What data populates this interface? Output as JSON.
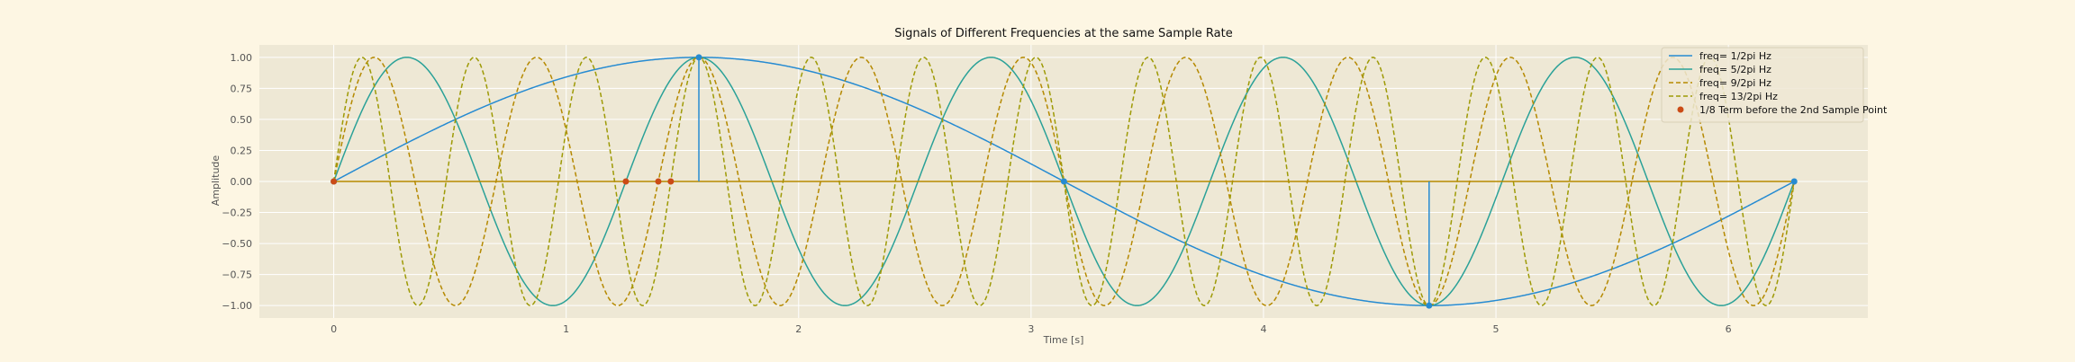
{
  "chart_data": {
    "type": "line",
    "title": "Signals of Different Frequencies at the same Sample Rate",
    "xlabel": "Time [s]",
    "ylabel": "Amplitude",
    "xlim": [
      -0.32,
      6.6
    ],
    "ylim": [
      -1.1,
      1.1
    ],
    "grid": true,
    "legend_position": "top-right",
    "x_ticks": [
      0,
      1,
      2,
      3,
      4,
      5,
      6
    ],
    "y_ticks": [
      1.0,
      0.75,
      0.5,
      0.25,
      0.0,
      -0.25,
      -0.5,
      -0.75,
      -1.0
    ],
    "y_tick_labels": [
      "1.00",
      "0.75",
      "0.50",
      "0.25",
      "0.00",
      "−0.25",
      "−0.50",
      "−0.75",
      "−1.00"
    ],
    "series": [
      {
        "name": "freq= 1/2pi Hz",
        "function": "sin",
        "frequency_multiplier": 1,
        "x_range": [
          0,
          6.2832
        ],
        "style": "solid",
        "color": "#268bd2"
      },
      {
        "name": "freq= 5/2pi Hz",
        "function": "sin",
        "frequency_multiplier": 5,
        "x_range": [
          0,
          6.2832
        ],
        "style": "solid",
        "color": "#2aa198"
      },
      {
        "name": "freq= 9/2pi Hz",
        "function": "sin",
        "frequency_multiplier": 9,
        "x_range": [
          0,
          6.2832
        ],
        "style": "dashed",
        "color": "#b58900"
      },
      {
        "name": "freq= 13/2pi Hz",
        "function": "sin",
        "frequency_multiplier": 13,
        "x_range": [
          0,
          6.2832
        ],
        "style": "dashed",
        "color": "#9e9a06"
      }
    ],
    "sample_stems": {
      "x": [
        0,
        1.5708,
        3.1416,
        4.7124,
        6.2832
      ],
      "y": [
        0,
        1,
        0,
        -1,
        0
      ],
      "color": "#268bd2",
      "baseline_color": "#b58900"
    },
    "scatter": {
      "name": "1/8 Term before the 2nd Sample Point",
      "x": [
        0,
        1.2566,
        1.3963,
        1.45
      ],
      "y": [
        0,
        0,
        0,
        0
      ],
      "color": "#cb4b16"
    }
  }
}
